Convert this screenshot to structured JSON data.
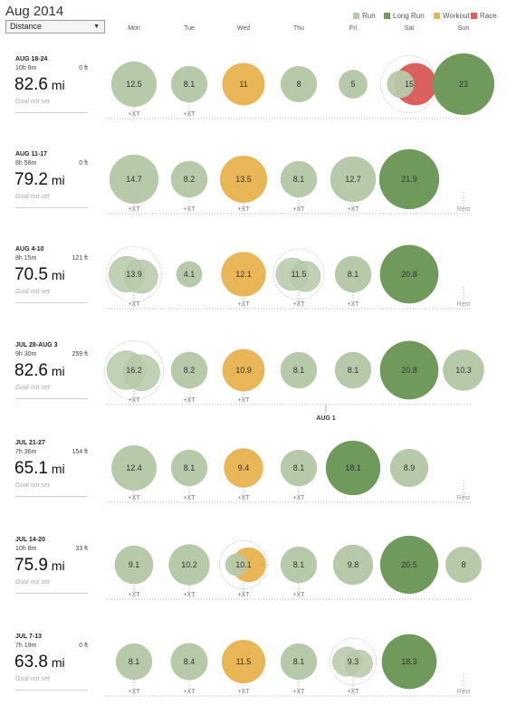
{
  "header": {
    "title": "Aug 2014",
    "metric_select": "Distance"
  },
  "legend": [
    {
      "label": "Run",
      "color": "#b6c9a8"
    },
    {
      "label": "Long Run",
      "color": "#6f9a5c"
    },
    {
      "label": "Workout",
      "color": "#e8b657"
    },
    {
      "label": "Race",
      "color": "#d9605c"
    }
  ],
  "days": [
    "Mon",
    "Tue",
    "Wed",
    "Thu",
    "Fri",
    "Sat",
    "Sun"
  ],
  "xt_label": "+XT",
  "rest_label": "Rest",
  "colors": {
    "run": "#b6c9a8",
    "long": "#6f9a5c",
    "workout": "#e8b657",
    "race": "#d9605c"
  },
  "weeks": [
    {
      "range": "AUG 18-24",
      "time": "10h 9m",
      "elev": "0 ft",
      "distance": "82.6",
      "unit": "mi",
      "goal": "Goal not set",
      "runs": [
        {
          "day": 0,
          "label": "12.5",
          "type": "run"
        },
        {
          "day": 1,
          "label": "8.1",
          "type": "run"
        },
        {
          "day": 2,
          "label": "11",
          "type": "workout"
        },
        {
          "day": 3,
          "label": "8",
          "type": "run"
        },
        {
          "day": 4,
          "label": "5",
          "type": "run"
        },
        {
          "day": 5,
          "label": "15",
          "type": "race",
          "overlay": "run"
        },
        {
          "day": 6,
          "label": "23",
          "type": "long"
        }
      ],
      "xt_days": [
        0,
        1
      ],
      "rest_day": null,
      "marker": null
    },
    {
      "range": "AUG 11-17",
      "time": "8h 58m",
      "elev": "0 ft",
      "distance": "79.2",
      "unit": "mi",
      "goal": "Goal not set",
      "runs": [
        {
          "day": 0,
          "label": "14.7",
          "type": "run"
        },
        {
          "day": 1,
          "label": "8.2",
          "type": "run"
        },
        {
          "day": 2,
          "label": "13.5",
          "type": "workout"
        },
        {
          "day": 3,
          "label": "8.1",
          "type": "run"
        },
        {
          "day": 4,
          "label": "12.7",
          "type": "run"
        },
        {
          "day": 5,
          "label": "21.9",
          "type": "long"
        }
      ],
      "xt_days": [
        0,
        1,
        2,
        3,
        4
      ],
      "rest_day": 6,
      "marker": null
    },
    {
      "range": "AUG 4-10",
      "time": "8h 15m",
      "elev": "121 ft",
      "distance": "70.5",
      "unit": "mi",
      "goal": "Goal not set",
      "runs": [
        {
          "day": 0,
          "label": "13.9",
          "type": "run",
          "multi": true
        },
        {
          "day": 1,
          "label": "4.1",
          "type": "run"
        },
        {
          "day": 2,
          "label": "12.1",
          "type": "workout"
        },
        {
          "day": 3,
          "label": "11.5",
          "type": "run",
          "multi": true
        },
        {
          "day": 4,
          "label": "8.1",
          "type": "run"
        },
        {
          "day": 5,
          "label": "20.8",
          "type": "long"
        }
      ],
      "xt_days": [
        0,
        2,
        3,
        4
      ],
      "rest_day": 6,
      "marker": null
    },
    {
      "range": "JUL 28-AUG 3",
      "time": "9h 30m",
      "elev": "259 ft",
      "distance": "82.6",
      "unit": "mi",
      "goal": "Goal not set",
      "runs": [
        {
          "day": 0,
          "label": "16.2",
          "type": "run",
          "multi": true
        },
        {
          "day": 1,
          "label": "8.2",
          "type": "run"
        },
        {
          "day": 2,
          "label": "10.9",
          "type": "workout"
        },
        {
          "day": 3,
          "label": "8.1",
          "type": "run"
        },
        {
          "day": 4,
          "label": "8.1",
          "type": "run"
        },
        {
          "day": 5,
          "label": "20.8",
          "type": "long"
        },
        {
          "day": 6,
          "label": "10.3",
          "type": "run"
        }
      ],
      "xt_days": [
        0,
        1,
        2
      ],
      "rest_day": null,
      "marker": "AUG 1"
    },
    {
      "range": "JUL 21-27",
      "time": "7h 36m",
      "elev": "154 ft",
      "distance": "65.1",
      "unit": "mi",
      "goal": "Goal not set",
      "runs": [
        {
          "day": 0,
          "label": "12.4",
          "type": "run"
        },
        {
          "day": 1,
          "label": "8.1",
          "type": "run"
        },
        {
          "day": 2,
          "label": "9.4",
          "type": "workout"
        },
        {
          "day": 3,
          "label": "8.1",
          "type": "run"
        },
        {
          "day": 4,
          "label": "18.1",
          "type": "long"
        },
        {
          "day": 5,
          "label": "8.9",
          "type": "run"
        }
      ],
      "xt_days": [
        0,
        1,
        2,
        3
      ],
      "rest_day": 6,
      "marker": null
    },
    {
      "range": "JUL 14-20",
      "time": "10h 8m",
      "elev": "33 ft",
      "distance": "75.9",
      "unit": "mi",
      "goal": "Goal not set",
      "runs": [
        {
          "day": 0,
          "label": "9.1",
          "type": "run"
        },
        {
          "day": 1,
          "label": "10.2",
          "type": "run"
        },
        {
          "day": 2,
          "label": "10.1",
          "type": "workout",
          "overlay": "run"
        },
        {
          "day": 3,
          "label": "8.1",
          "type": "run"
        },
        {
          "day": 4,
          "label": "9.8",
          "type": "run"
        },
        {
          "day": 5,
          "label": "20.5",
          "type": "long"
        },
        {
          "day": 6,
          "label": "8",
          "type": "run"
        }
      ],
      "xt_days": [
        0,
        1,
        2,
        3
      ],
      "rest_day": null,
      "marker": null
    },
    {
      "range": "JUL 7-13",
      "time": "7h 19m",
      "elev": "0 ft",
      "distance": "63.8",
      "unit": "mi",
      "goal": "Goal not set",
      "runs": [
        {
          "day": 0,
          "label": "8.1",
          "type": "run"
        },
        {
          "day": 1,
          "label": "8.4",
          "type": "run"
        },
        {
          "day": 2,
          "label": "11.5",
          "type": "workout"
        },
        {
          "day": 3,
          "label": "8.1",
          "type": "run"
        },
        {
          "day": 4,
          "label": "9.3",
          "type": "run",
          "multi": true
        },
        {
          "day": 5,
          "label": "18.3",
          "type": "long"
        }
      ],
      "xt_days": [
        0,
        1,
        2,
        3,
        4
      ],
      "rest_day": 6,
      "marker": null
    }
  ]
}
